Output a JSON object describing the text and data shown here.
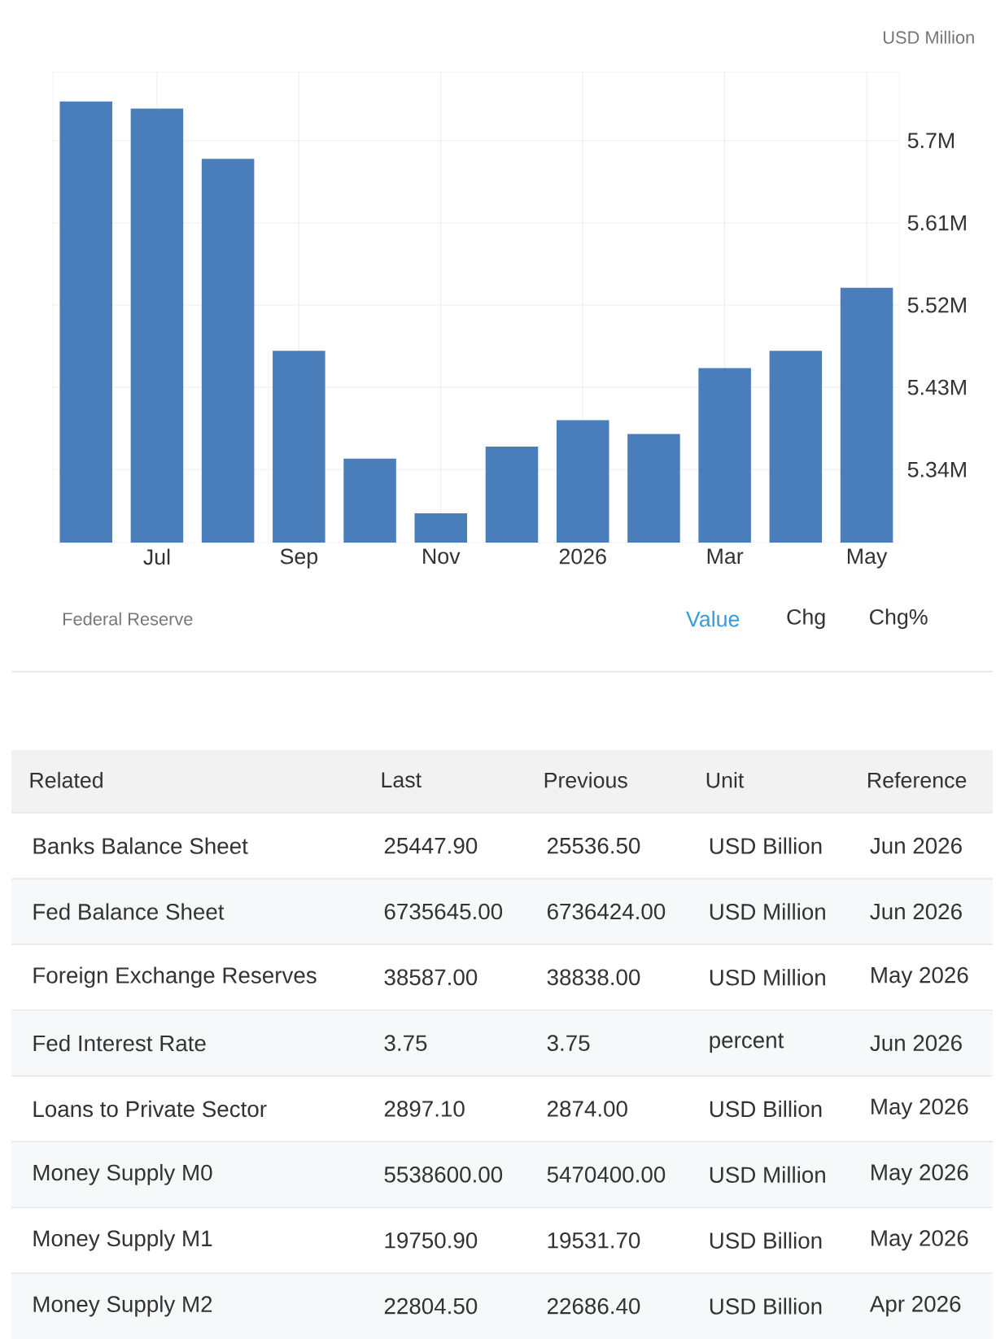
{
  "chart_data": [
    {
      "type": "bar",
      "ylabel": "USD Million",
      "categories": [
        null,
        "Jul",
        null,
        "Sep",
        null,
        "Nov",
        null,
        "2026",
        null,
        "Mar",
        null,
        "May"
      ],
      "values": [
        5.743,
        5.735,
        5.68,
        5.47,
        5.352,
        5.292,
        5.365,
        5.394,
        5.379,
        5.451,
        5.47,
        5.539
      ],
      "color": "#4a7ebb",
      "ylim": [
        5.26,
        5.775
      ],
      "yticks": [
        {
          "value": 5.34,
          "label": "5.34M"
        },
        {
          "value": 5.43,
          "label": "5.43M"
        },
        {
          "value": 5.52,
          "label": "5.52M"
        },
        {
          "value": 5.61,
          "label": "5.61M"
        },
        {
          "value": 5.7,
          "label": "5.7M"
        }
      ],
      "grid": true,
      "annotations": [
        "Federal Reserve",
        "Value",
        "Chg",
        "Chg%"
      ]
    },
    {
      "type": "other",
      "categories": [
        "Related",
        "Last",
        "Previous",
        "Unit",
        "Reference"
      ],
      "annotations": [
        "Banks Balance Sheet",
        "25447.90",
        "25536.50",
        "USD Billion",
        "Jun 2026",
        "Fed Balance Sheet",
        "6735645.00",
        "6736424.00",
        "USD Million",
        "Jun 2026",
        "Foreign Exchange Reserves",
        "38587.00",
        "38838.00",
        "USD Million",
        "May 2026",
        "Fed Interest Rate",
        "3.75",
        "3.75",
        "percent",
        "Jun 2026",
        "Loans to Private Sector",
        "2897.10",
        "2874.00",
        "USD Billion",
        "May 2026",
        "Money Supply M0",
        "5538600.00",
        "5470400.00",
        "USD Million",
        "May 2026",
        "Money Supply M1",
        "19750.90",
        "19531.70",
        "USD Billion",
        "May 2026",
        "Money Supply M2",
        "22804.50",
        "22686.40",
        "USD Billion",
        "Apr 2026"
      ]
    }
  ]
}
